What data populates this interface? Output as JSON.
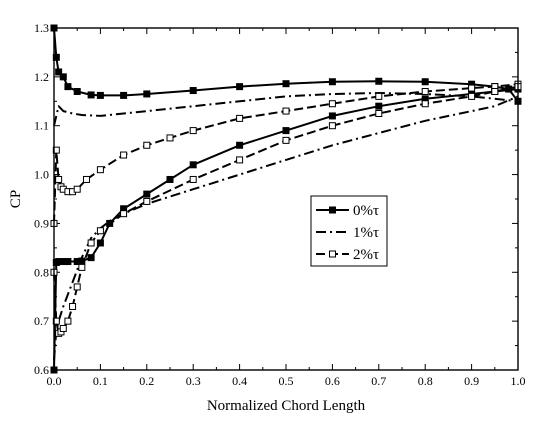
{
  "chart_data": {
    "type": "line",
    "xlabel": "Normalized Chord Length",
    "ylabel": "CP",
    "xlim": [
      0,
      1
    ],
    "ylim": [
      0.6,
      1.3
    ],
    "x_ticks": [
      0,
      0.1,
      0.2,
      0.3,
      0.4,
      0.5,
      0.6,
      0.7,
      0.8,
      0.9,
      1
    ],
    "x_tick_labels": [
      "0.0",
      "0.1",
      "0.2",
      "0.3",
      "0.4",
      "0.5",
      "0.6",
      "0.7",
      "0.8",
      "0.9",
      "1.0"
    ],
    "y_ticks": [
      0.6,
      0.7,
      0.8,
      0.9,
      1.0,
      1.1,
      1.2,
      1.3
    ],
    "y_tick_labels": [
      "0.6",
      "0.7",
      "0.8",
      "0.9",
      "1.0",
      "1.1",
      "1.2",
      "1.3"
    ],
    "legend_position": "center-right",
    "grid": false,
    "series": [
      {
        "name": "0%τ",
        "style": "solid-filled-square",
        "color": "#000000",
        "upper": {
          "x": [
            0.0,
            0.005,
            0.01,
            0.02,
            0.03,
            0.05,
            0.08,
            0.1,
            0.15,
            0.2,
            0.3,
            0.4,
            0.5,
            0.6,
            0.7,
            0.8,
            0.9,
            0.95,
            0.98,
            1.0
          ],
          "y": [
            1.3,
            1.24,
            1.21,
            1.2,
            1.18,
            1.17,
            1.163,
            1.162,
            1.162,
            1.165,
            1.172,
            1.18,
            1.186,
            1.19,
            1.191,
            1.19,
            1.185,
            1.18,
            1.175,
            1.15
          ]
        },
        "lower": {
          "x": [
            0.0,
            0.005,
            0.01,
            0.02,
            0.03,
            0.05,
            0.06,
            0.08,
            0.1,
            0.12,
            0.15,
            0.2,
            0.25,
            0.3,
            0.4,
            0.5,
            0.6,
            0.7,
            0.8,
            0.9,
            0.95,
            1.0
          ],
          "y": [
            0.6,
            0.82,
            0.822,
            0.822,
            0.822,
            0.822,
            0.823,
            0.83,
            0.86,
            0.9,
            0.93,
            0.96,
            0.99,
            1.02,
            1.06,
            1.09,
            1.12,
            1.14,
            1.155,
            1.165,
            1.17,
            1.175
          ]
        }
      },
      {
        "name": "1%τ",
        "style": "dash-dot",
        "color": "#000000",
        "upper": {
          "x": [
            0.0,
            0.01,
            0.02,
            0.04,
            0.06,
            0.1,
            0.15,
            0.2,
            0.3,
            0.4,
            0.5,
            0.6,
            0.7,
            0.8,
            0.9,
            0.95,
            1.0
          ],
          "y": [
            1.1,
            1.14,
            1.13,
            1.125,
            1.122,
            1.12,
            1.125,
            1.13,
            1.14,
            1.15,
            1.16,
            1.165,
            1.167,
            1.165,
            1.16,
            1.155,
            1.15
          ]
        },
        "lower": {
          "x": [
            0.0,
            0.005,
            0.01,
            0.02,
            0.04,
            0.06,
            0.08,
            0.1,
            0.12,
            0.15,
            0.2,
            0.3,
            0.4,
            0.5,
            0.6,
            0.7,
            0.8,
            0.9,
            0.95,
            1.0
          ],
          "y": [
            0.62,
            0.68,
            0.7,
            0.73,
            0.78,
            0.83,
            0.87,
            0.89,
            0.905,
            0.92,
            0.94,
            0.97,
            1.0,
            1.03,
            1.06,
            1.085,
            1.11,
            1.13,
            1.14,
            1.16
          ]
        }
      },
      {
        "name": "2%τ",
        "style": "dashed-open-square",
        "color": "#000000",
        "upper": {
          "x": [
            0.0,
            0.005,
            0.01,
            0.015,
            0.02,
            0.03,
            0.04,
            0.05,
            0.07,
            0.1,
            0.15,
            0.2,
            0.25,
            0.3,
            0.4,
            0.5,
            0.6,
            0.7,
            0.8,
            0.9,
            0.95,
            1.0
          ],
          "y": [
            0.9,
            1.05,
            0.99,
            0.975,
            0.97,
            0.965,
            0.965,
            0.97,
            0.99,
            1.01,
            1.04,
            1.06,
            1.075,
            1.09,
            1.115,
            1.13,
            1.145,
            1.16,
            1.17,
            1.177,
            1.18,
            1.185
          ]
        },
        "lower": {
          "x": [
            0.0,
            0.005,
            0.01,
            0.015,
            0.02,
            0.03,
            0.04,
            0.05,
            0.06,
            0.08,
            0.1,
            0.15,
            0.2,
            0.3,
            0.4,
            0.5,
            0.6,
            0.7,
            0.8,
            0.9,
            0.95,
            1.0
          ],
          "y": [
            0.8,
            0.7,
            0.675,
            0.678,
            0.685,
            0.7,
            0.73,
            0.77,
            0.81,
            0.86,
            0.885,
            0.92,
            0.945,
            0.99,
            1.03,
            1.07,
            1.1,
            1.125,
            1.145,
            1.16,
            1.17,
            1.18
          ]
        }
      }
    ]
  }
}
